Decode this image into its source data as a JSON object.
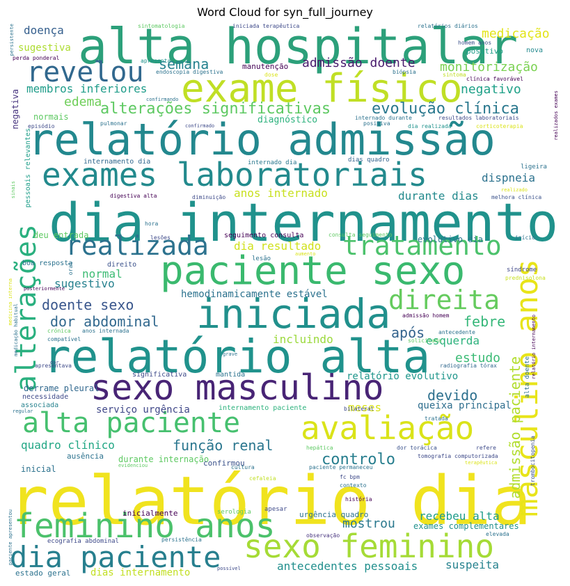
{
  "chart_data": {
    "type": "wordcloud",
    "title": "Word Cloud for syn_full_journey",
    "words": [
      {
        "text": "relatório dia",
        "weight": 100,
        "color": "#f0e31e"
      },
      {
        "text": "dia internamento",
        "weight": 80,
        "color": "#20928c"
      },
      {
        "text": "alta hospitalar",
        "weight": 78,
        "color": "#2ca07a"
      },
      {
        "text": "relatório admissão",
        "weight": 70,
        "color": "#23888e"
      },
      {
        "text": "relatório alta",
        "weight": 70,
        "color": "#20928c"
      },
      {
        "text": "exame físico",
        "weight": 62,
        "color": "#c0df25"
      },
      {
        "text": "paciente sexo",
        "weight": 60,
        "color": "#3ab96e"
      },
      {
        "text": "iniciada",
        "weight": 62,
        "color": "#21908c"
      },
      {
        "text": "masculino anos",
        "weight": 56,
        "color": "#e8e419"
      },
      {
        "text": "sexo masculino",
        "weight": 54,
        "color": "#482475"
      },
      {
        "text": "exames laboratoriais",
        "weight": 50,
        "color": "#238a8d"
      },
      {
        "text": "feminino anos",
        "weight": 50,
        "color": "#4bc16b"
      },
      {
        "text": "sexo feminino",
        "weight": 50,
        "color": "#a5db36"
      },
      {
        "text": "avaliação",
        "weight": 48,
        "color": "#dae319"
      },
      {
        "text": "dia paciente",
        "weight": 46,
        "color": "#277f8e"
      },
      {
        "text": "alta paciente",
        "weight": 44,
        "color": "#46c06f"
      },
      {
        "text": "revelou",
        "weight": 44,
        "color": "#31688e"
      },
      {
        "text": "alterações",
        "weight": 44,
        "color": "#2ab07f"
      },
      {
        "text": "tratamento",
        "weight": 42,
        "color": "#4cc26c"
      },
      {
        "text": "realizada",
        "weight": 40,
        "color": "#2c728e"
      },
      {
        "text": "direita",
        "weight": 40,
        "color": "#65cb5e"
      },
      {
        "text": "alterações significativas",
        "weight": 24,
        "color": "#5ec962"
      },
      {
        "text": "evolução clínica",
        "weight": 24,
        "color": "#2a788e"
      },
      {
        "text": "admissão paciente",
        "weight": 22,
        "color": "#b2dd2d"
      },
      {
        "text": "controlo",
        "weight": 22,
        "color": "#277e8e"
      },
      {
        "text": "função renal",
        "weight": 20,
        "color": "#2a768e"
      },
      {
        "text": "doente sexo",
        "weight": 19,
        "color": "#39568c"
      },
      {
        "text": "semana",
        "weight": 19,
        "color": "#26828e"
      },
      {
        "text": "medicação",
        "weight": 18,
        "color": "#e2e418"
      },
      {
        "text": "admissão doente",
        "weight": 18,
        "color": "#481b6d"
      },
      {
        "text": "monitorização",
        "weight": 18,
        "color": "#7ad151"
      },
      {
        "text": "negativo",
        "weight": 17,
        "color": "#1fa188"
      },
      {
        "text": "edema",
        "weight": 17,
        "color": "#6ece58"
      },
      {
        "text": "membros inferiores",
        "weight": 16,
        "color": "#1e9c89"
      },
      {
        "text": "dor abdominal",
        "weight": 19,
        "color": "#31688e"
      },
      {
        "text": "febre",
        "weight": 19,
        "color": "#35b779"
      },
      {
        "text": "estudo",
        "weight": 17,
        "color": "#3bbb75"
      },
      {
        "text": "devido",
        "weight": 19,
        "color": "#2d708e"
      },
      {
        "text": "após",
        "weight": 19,
        "color": "#33638d"
      },
      {
        "text": "dispneia",
        "weight": 16,
        "color": "#2c728e"
      },
      {
        "text": "anos internado",
        "weight": 16,
        "color": "#c8e020"
      },
      {
        "text": "durante dias",
        "weight": 16,
        "color": "#238a8d"
      },
      {
        "text": "dia resultado",
        "weight": 16,
        "color": "#d0e11c"
      },
      {
        "text": "sugestivo",
        "weight": 16,
        "color": "#26818e"
      },
      {
        "text": "normal",
        "weight": 16,
        "color": "#3dbc74"
      },
      {
        "text": "hemodinamicamente estável",
        "weight": 14,
        "color": "#2c728e"
      },
      {
        "text": "esquerda",
        "weight": 15,
        "color": "#2db27d"
      },
      {
        "text": "incluindo",
        "weight": 15,
        "color": "#9bd93c"
      },
      {
        "text": "relatório evolutivo",
        "weight": 14,
        "color": "#1f968b"
      },
      {
        "text": "meses",
        "weight": 15,
        "color": "#d8e219"
      },
      {
        "text": "queixa principal",
        "weight": 14,
        "color": "#2e6e8e"
      },
      {
        "text": "serviço urgência",
        "weight": 14,
        "color": "#3f4788"
      },
      {
        "text": "quadro clínico",
        "weight": 15,
        "color": "#22a785"
      },
      {
        "text": "recebeu alta",
        "weight": 15,
        "color": "#1e9b8a"
      },
      {
        "text": "mostrou",
        "weight": 16,
        "color": "#2a788e"
      },
      {
        "text": "exames complementares",
        "weight": 12,
        "color": "#21918c"
      },
      {
        "text": "antecedentes pessoais",
        "weight": 16,
        "color": "#218f8d"
      },
      {
        "text": "dias internamento",
        "weight": 14,
        "color": "#c2df23"
      },
      {
        "text": "suspeita",
        "weight": 15,
        "color": "#26828e"
      },
      {
        "text": "estado geral",
        "weight": 11,
        "color": "#2c728e"
      },
      {
        "text": "doença",
        "weight": 16,
        "color": "#355f8d"
      },
      {
        "text": "sugestiva",
        "weight": 13,
        "color": "#addc30"
      },
      {
        "text": "manutenção",
        "weight": 11,
        "color": "#440154"
      },
      {
        "text": "positivo",
        "weight": 11,
        "color": "#1f9e89"
      },
      {
        "text": "nova",
        "weight": 9,
        "color": "#23898e"
      },
      {
        "text": "diagnóstico",
        "weight": 12,
        "color": "#2db27d"
      },
      {
        "text": "normais",
        "weight": 11,
        "color": "#5ec962"
      },
      {
        "text": "negativa",
        "weight": 12,
        "color": "#46337e"
      },
      {
        "text": "pessoais relevantes",
        "weight": 9,
        "color": "#1f9e89"
      },
      {
        "text": "internamento dia",
        "weight": 9,
        "color": "#31688e"
      },
      {
        "text": "internado dia",
        "weight": 8,
        "color": "#2a788e"
      },
      {
        "text": "dias quadro",
        "weight": 8,
        "color": "#33638d"
      },
      {
        "text": "ligeira",
        "weight": 8,
        "color": "#2c728e"
      },
      {
        "text": "evolutivo dia",
        "weight": 11,
        "color": "#2a788e"
      },
      {
        "text": "seguimento consulta",
        "weight": 10,
        "color": "#440154"
      },
      {
        "text": "deu entrada",
        "weight": 11,
        "color": "#5ec962"
      },
      {
        "text": "direito",
        "weight": 10,
        "color": "#3b528b"
      },
      {
        "text": "boa resposta",
        "weight": 9,
        "color": "#2c728e"
      },
      {
        "text": "síndrome",
        "weight": 9,
        "color": "#3f4788"
      },
      {
        "text": "prednisolona",
        "weight": 8,
        "color": "#c8e020"
      },
      {
        "text": "significativa",
        "weight": 10,
        "color": "#3e4a89"
      },
      {
        "text": "mantida",
        "weight": 10,
        "color": "#2c728e"
      },
      {
        "text": "derrame pleural",
        "weight": 11,
        "color": "#31688e"
      },
      {
        "text": "necessidade",
        "weight": 9,
        "color": "#3e4a89"
      },
      {
        "text": "associada",
        "weight": 10,
        "color": "#26828e"
      },
      {
        "text": "internamento paciente",
        "weight": 10,
        "color": "#2db27d"
      },
      {
        "text": "bilateral",
        "weight": 8,
        "color": "#3e4a89"
      },
      {
        "text": "ausência",
        "weight": 10,
        "color": "#2c728e"
      },
      {
        "text": "durante internação",
        "weight": 11,
        "color": "#5ec962"
      },
      {
        "text": "confirmou",
        "weight": 10,
        "color": "#3b528b"
      },
      {
        "text": "inicial",
        "weight": 11,
        "color": "#2c728e"
      },
      {
        "text": "inicialmente",
        "weight": 10,
        "color": "#440154"
      },
      {
        "text": "serologia",
        "weight": 9,
        "color": "#5ec962"
      },
      {
        "text": "urgência quadro",
        "weight": 10,
        "color": "#2c728e"
      },
      {
        "text": "ecografia abdominal",
        "weight": 9,
        "color": "#3e4a89"
      },
      {
        "text": "observação",
        "weight": 8,
        "color": "#46337e"
      },
      {
        "text": "tomografia computorizada",
        "weight": 8,
        "color": "#3e4a89"
      },
      {
        "text": "radiografia tórax",
        "weight": 8,
        "color": "#31688e"
      },
      {
        "text": "dor torácica",
        "weight": 8,
        "color": "#3b528b"
      },
      {
        "text": "trombocitopenia",
        "weight": 8,
        "color": "#3b528b"
      },
      {
        "text": "sintomatologia",
        "weight": 8,
        "color": "#5ec962"
      },
      {
        "text": "iniciada terapêutica",
        "weight": 8,
        "color": "#3e4a89"
      },
      {
        "text": "relatórios diários",
        "weight": 8,
        "color": "#2c728e"
      },
      {
        "text": "homem anos",
        "weight": 8,
        "color": "#3b528b"
      },
      {
        "text": "perda ponderal",
        "weight": 8,
        "color": "#440154"
      },
      {
        "text": "apresenta",
        "weight": 8,
        "color": "#20928c"
      },
      {
        "text": "endoscopia digestiva",
        "weight": 8,
        "color": "#2c728e"
      },
      {
        "text": "dose",
        "weight": 8,
        "color": "#dae319"
      },
      {
        "text": "biópsia",
        "weight": 8,
        "color": "#2c728e"
      },
      {
        "text": "sintoma",
        "weight": 8,
        "color": "#c0df25"
      },
      {
        "text": "clínica favorável",
        "weight": 8,
        "color": "#440154"
      },
      {
        "text": "persistente",
        "weight": 7,
        "color": "#2c728e"
      },
      {
        "text": "confirmando",
        "weight": 7,
        "color": "#2c728e"
      },
      {
        "text": "confirmado",
        "weight": 7,
        "color": "#3e4a89"
      },
      {
        "text": "internado durante",
        "weight": 8,
        "color": "#2c728e"
      },
      {
        "text": "positiva",
        "weight": 8,
        "color": "#2c728e"
      },
      {
        "text": "resultados laboratoriais",
        "weight": 8,
        "color": "#3e4a89"
      },
      {
        "text": "dia realizada",
        "weight": 8,
        "color": "#20928c"
      },
      {
        "text": "corticoterapia",
        "weight": 8,
        "color": "#dae319"
      },
      {
        "text": "realizados exames",
        "weight": 7,
        "color": "#440154"
      },
      {
        "text": "episódio",
        "weight": 8,
        "color": "#3e4a89"
      },
      {
        "text": "pulmonar",
        "weight": 8,
        "color": "#2c728e"
      },
      {
        "text": "sinais",
        "weight": 7,
        "color": "#5ec962"
      },
      {
        "text": "digestiva alta",
        "weight": 8,
        "color": "#440154"
      },
      {
        "text": "diminuição",
        "weight": 8,
        "color": "#3e4a89"
      },
      {
        "text": "realizado",
        "weight": 7,
        "color": "#dae319"
      },
      {
        "text": "melhora clínica",
        "weight": 8,
        "color": "#3b528b"
      },
      {
        "text": "hora",
        "weight": 8,
        "color": "#2c728e"
      },
      {
        "text": "lesões",
        "weight": 8,
        "color": "#3e4a89"
      },
      {
        "text": "consulta seguimento",
        "weight": 8,
        "color": "#5ec962"
      },
      {
        "text": "início",
        "weight": 8,
        "color": "#2c728e"
      },
      {
        "text": "aumento",
        "weight": 7,
        "color": "#dae319"
      },
      {
        "text": "lesão",
        "weight": 9,
        "color": "#2c728e"
      },
      {
        "text": "oral",
        "weight": 8,
        "color": "#2c728e"
      },
      {
        "text": "medicina interna",
        "weight": 7,
        "color": "#dae319"
      },
      {
        "text": "medicação habitual",
        "weight": 7,
        "color": "#2c728e"
      },
      {
        "text": "posteriormente",
        "weight": 7,
        "color": "#440154"
      },
      {
        "text": "crónica",
        "weight": 8,
        "color": "#5ec962"
      },
      {
        "text": "anos internada",
        "weight": 8,
        "color": "#2c728e"
      },
      {
        "text": "compatível",
        "weight": 8,
        "color": "#2c728e"
      },
      {
        "text": "admissão homem",
        "weight": 8,
        "color": "#440154"
      },
      {
        "text": "antecedente",
        "weight": 8,
        "color": "#2c728e"
      },
      {
        "text": "solicitada",
        "weight": 8,
        "color": "#5ec962"
      },
      {
        "text": "alta doente",
        "weight": 9,
        "color": "#2c728e"
      },
      {
        "text": "relatório internamento",
        "weight": 7,
        "color": "#440154"
      },
      {
        "text": "dor",
        "weight": 7,
        "color": "#3e4a89"
      },
      {
        "text": "grave",
        "weight": 7,
        "color": "#2c728e"
      },
      {
        "text": "apresentava",
        "weight": 8,
        "color": "#3e4a89"
      },
      {
        "text": "regular",
        "weight": 7,
        "color": "#2c728e"
      },
      {
        "text": "tratada",
        "weight": 8,
        "color": "#2c728e"
      },
      {
        "text": "hepática",
        "weight": 8,
        "color": "#5ec962"
      },
      {
        "text": "refere",
        "weight": 8,
        "color": "#3e4a89"
      },
      {
        "text": "evidenciou",
        "weight": 7,
        "color": "#5ec962"
      },
      {
        "text": "cultura",
        "weight": 8,
        "color": "#2c728e"
      },
      {
        "text": "paciente permaneceu",
        "weight": 8,
        "color": "#2c728e"
      },
      {
        "text": "fc bpm",
        "weight": 8,
        "color": "#3e4a89"
      },
      {
        "text": "terapêutica",
        "weight": 7,
        "color": "#dae319"
      },
      {
        "text": "contexto",
        "weight": 8,
        "color": "#2c728e"
      },
      {
        "text": "cefaleia",
        "weight": 8,
        "color": "#c0df25"
      },
      {
        "text": "história",
        "weight": 8,
        "color": "#440154"
      },
      {
        "text": "paciente apresentou",
        "weight": 7,
        "color": "#2c728e"
      },
      {
        "text": "apesar",
        "weight": 9,
        "color": "#3e4a89"
      },
      {
        "text": "persistência",
        "weight": 8,
        "color": "#2c728e"
      },
      {
        "text": "elevada",
        "weight": 8,
        "color": "#2c728e"
      },
      {
        "text": "possível",
        "weight": 7,
        "color": "#3e4a89"
      }
    ]
  }
}
